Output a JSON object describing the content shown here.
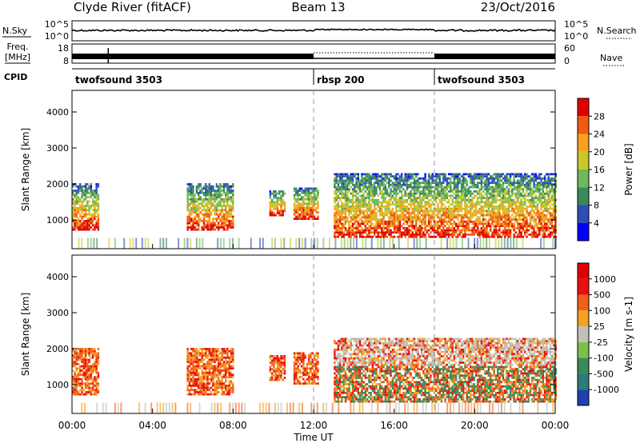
{
  "header": {
    "station": "Clyde River (fitACF)",
    "beam": "Beam 13",
    "date": "23/Oct/2016"
  },
  "nsky_panel": {
    "label": "N.Sky",
    "left_ticks": [
      "10^5",
      "10^0"
    ],
    "right_label": "N.Search",
    "right_ticks": [
      "10^5",
      "10^0"
    ]
  },
  "freq_panel": {
    "label_line1": "Freq.",
    "label_line2": "[MHz]",
    "left_ticks": [
      "18",
      "8"
    ],
    "right_label": "Nave",
    "right_ticks": [
      "60",
      "0"
    ]
  },
  "cpid": {
    "label": "CPID",
    "segments": [
      {
        "name": "twofsound 3503",
        "start_hour": 0,
        "end_hour": 12
      },
      {
        "name": "rbsp 200",
        "start_hour": 12,
        "end_hour": 18
      },
      {
        "name": "twofsound 3503",
        "start_hour": 18,
        "end_hour": 24
      }
    ]
  },
  "chart_data": [
    {
      "type": "heatmap",
      "parameter": "Power",
      "ylabel": "Slant Range [km]",
      "ylim": [
        200,
        4600
      ],
      "yticks": [
        "1000",
        "2000",
        "3000",
        "4000"
      ],
      "xlim_hours": [
        0,
        24
      ],
      "colorbar_label": "Power [dB]",
      "colorbar_ticks": [
        "28",
        "24",
        "20",
        "16",
        "12",
        "8",
        "4"
      ],
      "colorbar_colors": [
        "#0000ff",
        "#2c4fb4",
        "#3c8a5a",
        "#6fb85b",
        "#c8c82a",
        "#f7a21b",
        "#f05a12",
        "#e00000"
      ],
      "echo_regions": [
        {
          "start_hour": 0.0,
          "end_hour": 1.3,
          "range_low": 700,
          "range_high": 2000
        },
        {
          "start_hour": 5.7,
          "end_hour": 8.0,
          "range_low": 700,
          "range_high": 2000
        },
        {
          "start_hour": 9.8,
          "end_hour": 10.6,
          "range_low": 1100,
          "range_high": 1800
        },
        {
          "start_hour": 11.0,
          "end_hour": 12.2,
          "range_low": 1000,
          "range_high": 1900
        },
        {
          "start_hour": 13.0,
          "end_hour": 24.0,
          "range_low": 500,
          "range_high": 2300
        }
      ]
    },
    {
      "type": "heatmap",
      "parameter": "Velocity",
      "ylabel": "Slant Range [km]",
      "ylim": [
        200,
        4600
      ],
      "yticks": [
        "1000",
        "2000",
        "3000",
        "4000"
      ],
      "xlim_hours": [
        0,
        24
      ],
      "xlabel": "Time UT",
      "xticks": [
        "00:00",
        "04:00",
        "08:00",
        "12:00",
        "16:00",
        "20:00",
        "00:00"
      ],
      "colorbar_label": "Velocity [m s-1]",
      "colorbar_ticks": [
        "1000",
        "500",
        "100",
        "25",
        "-25",
        "-100",
        "-500",
        "-1000"
      ],
      "colorbar_colors": [
        "#2040b0",
        "#2e7a7a",
        "#3a8a5c",
        "#7cc04a",
        "#c0c0b8",
        "#f5a020",
        "#f06018",
        "#e81010",
        "#e00000"
      ],
      "echo_regions": [
        {
          "start_hour": 0.0,
          "end_hour": 1.3,
          "range_low": 700,
          "range_high": 2000
        },
        {
          "start_hour": 5.7,
          "end_hour": 8.0,
          "range_low": 700,
          "range_high": 2000
        },
        {
          "start_hour": 9.8,
          "end_hour": 10.6,
          "range_low": 1100,
          "range_high": 1800
        },
        {
          "start_hour": 11.0,
          "end_hour": 12.2,
          "range_low": 1000,
          "range_high": 1900
        },
        {
          "start_hour": 13.0,
          "end_hour": 24.0,
          "range_low": 500,
          "range_high": 2300
        }
      ]
    }
  ]
}
